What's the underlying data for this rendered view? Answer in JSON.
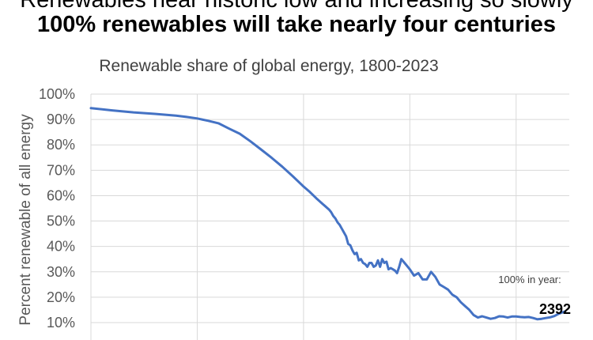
{
  "headline": {
    "line1": "Renewables near historic low and increasing so slowly",
    "line2": "100% renewables will take nearly four centuries"
  },
  "chart_data": {
    "type": "line",
    "title": "Renewable share of global energy, 1800-2023",
    "xlabel": "",
    "ylabel": "Percent renewable of all energy",
    "xlim": [
      1800,
      2025
    ],
    "ylim": [
      10,
      100
    ],
    "yticks": [
      "10%",
      "20%",
      "30%",
      "40%",
      "50%",
      "60%",
      "70%",
      "80%",
      "90%",
      "100%"
    ],
    "grid": true,
    "line_color": "#4472C4",
    "series": [
      {
        "name": "Renewable share",
        "x": [
          1800,
          1810,
          1820,
          1830,
          1840,
          1845,
          1850,
          1855,
          1860,
          1865,
          1870,
          1875,
          1880,
          1885,
          1890,
          1895,
          1900,
          1903,
          1906,
          1909,
          1910,
          1912,
          1913,
          1914,
          1915,
          1916,
          1917,
          1918,
          1919,
          1920,
          1921,
          1922,
          1923,
          1924,
          1925,
          1926,
          1927,
          1928,
          1929,
          1930,
          1931,
          1932,
          1933,
          1934,
          1935,
          1936,
          1937,
          1938,
          1939,
          1940,
          1941,
          1942,
          1943,
          1944,
          1945,
          1946,
          1947,
          1948,
          1950,
          1952,
          1954,
          1956,
          1958,
          1960,
          1962,
          1964,
          1966,
          1968,
          1970,
          1972,
          1973,
          1974,
          1976,
          1978,
          1980,
          1982,
          1984,
          1986,
          1988,
          1990,
          1992,
          1994,
          1996,
          1998,
          2000,
          2002,
          2004,
          2006,
          2008,
          2010,
          2012,
          2014,
          2016,
          2018,
          2020,
          2021,
          2022,
          2023
        ],
        "values": [
          94.5,
          93.6,
          92.8,
          92.2,
          91.5,
          91.0,
          90.4,
          89.5,
          88.5,
          86.4,
          84.4,
          81.4,
          78.2,
          74.9,
          71.4,
          67.6,
          63.6,
          61.4,
          59.0,
          56.7,
          56.0,
          54.5,
          53.5,
          52.0,
          51.0,
          49.5,
          48.5,
          47.0,
          45.5,
          44.0,
          41.0,
          40.5,
          38.5,
          37.0,
          37.5,
          34.5,
          35.0,
          33.5,
          33.0,
          32.0,
          33.5,
          33.5,
          32.0,
          32.5,
          34.5,
          32.0,
          35.0,
          33.5,
          34.0,
          31.0,
          31.5,
          31.0,
          30.5,
          29.5,
          32.0,
          35.0,
          34.0,
          33.0,
          31.0,
          28.5,
          29.5,
          27.0,
          27.0,
          30.0,
          28.0,
          25.0,
          24.0,
          23.0,
          21.0,
          20.0,
          19.0,
          18.0,
          16.5,
          15.0,
          13.0,
          12.0,
          12.5,
          12.0,
          11.5,
          11.8,
          12.5,
          12.4,
          12.0,
          12.4,
          12.4,
          12.2,
          12.1,
          12.2,
          11.8,
          11.3,
          11.5,
          11.8,
          12.1,
          12.6,
          13.5,
          13.8,
          14.1,
          14.4
        ]
      }
    ],
    "annotation": {
      "label": "100% in year:",
      "value": "2392"
    }
  }
}
